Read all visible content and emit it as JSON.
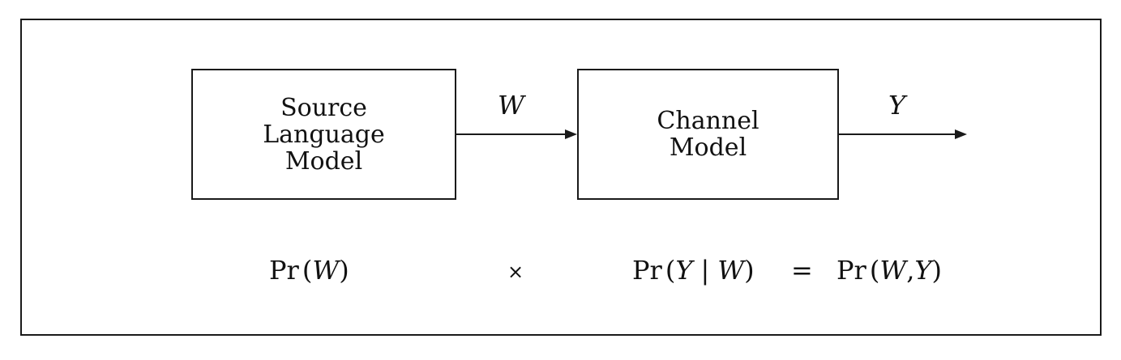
{
  "diagram": {
    "source_box": {
      "lines": [
        "Source",
        "Language",
        "Model"
      ]
    },
    "channel_box": {
      "lines": [
        "Channel",
        "Model"
      ]
    },
    "edge_labels": {
      "w": "W",
      "y": "Y"
    },
    "formula": {
      "prefix": "Pr",
      "open": "(",
      "close": ")",
      "w": "W",
      "y": "Y",
      "times": "×",
      "bar": "|",
      "equals": "=",
      "comma": ","
    }
  }
}
